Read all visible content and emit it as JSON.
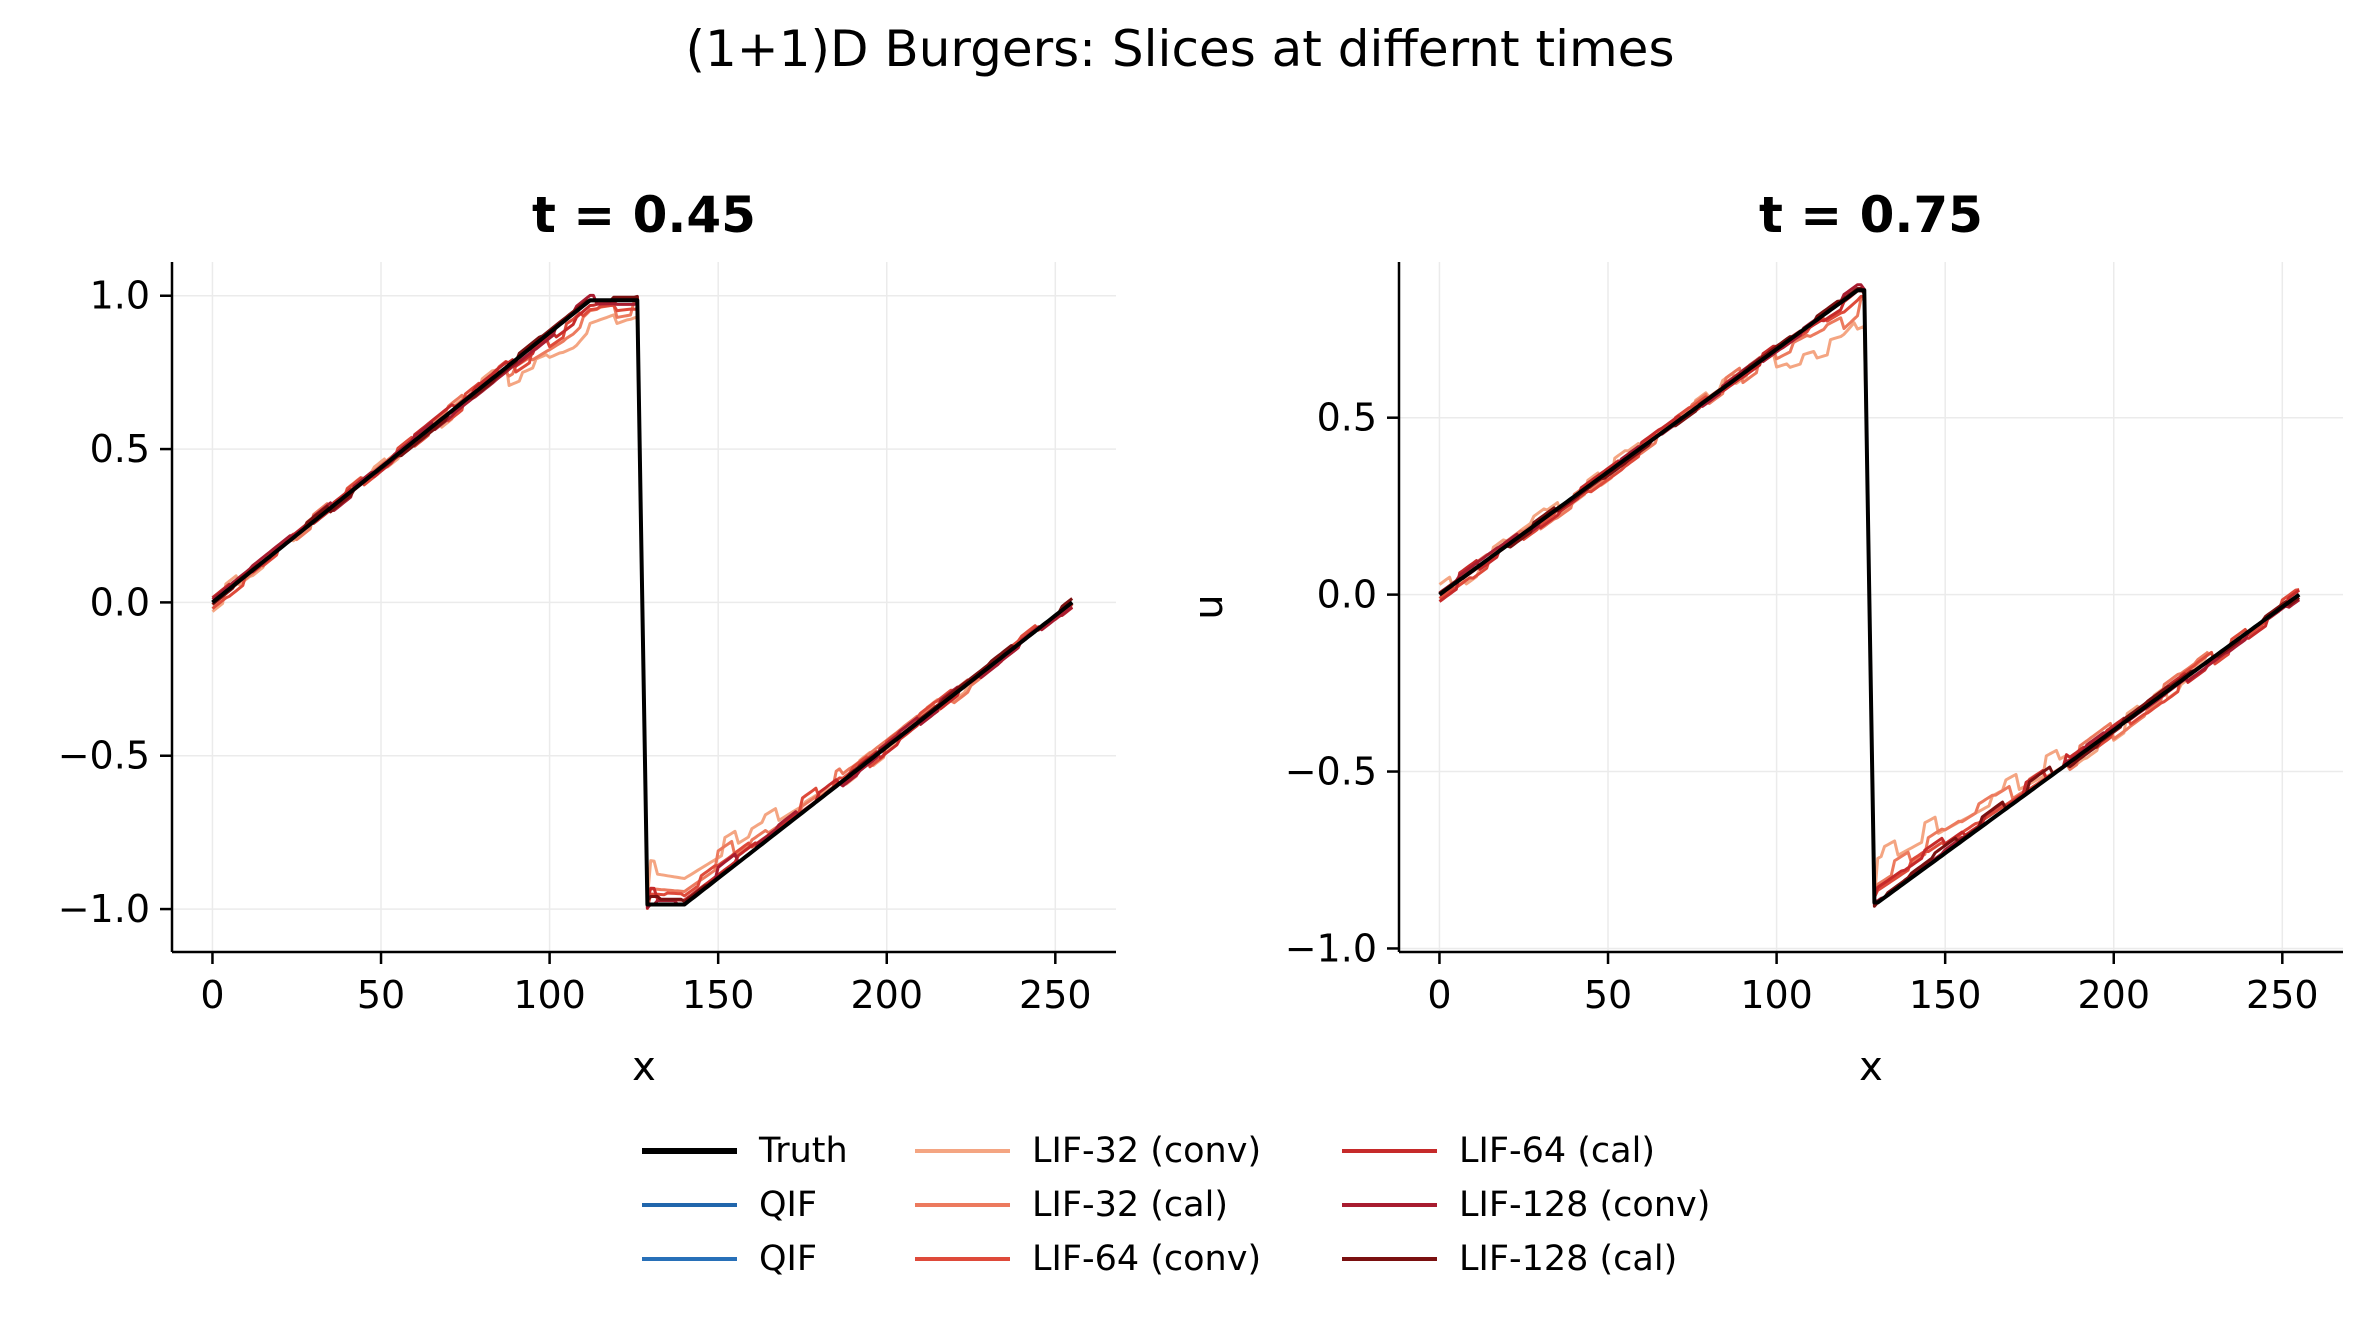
{
  "figure": {
    "suptitle": "(1+1)D Burgers: Slices at differnt times"
  },
  "colors": {
    "Truth": "#000000",
    "QIF": "#2166ac",
    "QIF2": "#2870b8",
    "LIF-32 (conv)": "#f4a582",
    "LIF-32 (cal)": "#ec7a5e",
    "LIF-64 (conv)": "#de4a3a",
    "LIF-64 (cal)": "#c62a2a",
    "LIF-128 (conv)": "#a81c30",
    "LIF-128 (cal)": "#7a1010",
    "grid": "#ebebeb"
  },
  "legend": [
    "Truth",
    "QIF",
    "QIF",
    "LIF-32 (conv)",
    "LIF-32 (cal)",
    "LIF-64 (conv)",
    "LIF-64 (cal)",
    "LIF-128 (conv)",
    "LIF-128 (cal)"
  ],
  "chart_data": [
    {
      "type": "line",
      "title": "t = 0.45",
      "xlabel": "x",
      "ylabel": "",
      "xlim": [
        -12,
        268
      ],
      "ylim": [
        -1.14,
        1.11
      ],
      "xticks": [
        0,
        50,
        100,
        150,
        200,
        250
      ],
      "yticks": [
        1.0,
        0.5,
        0.0,
        -0.5,
        -1.0
      ],
      "ytick_labels": [
        "1.0",
        "0.5",
        "0.0",
        "−0.5",
        "−1.0"
      ],
      "grid": true,
      "truth_shape": {
        "peak_x": 112,
        "peak_y": 0.985,
        "shock_x": 127,
        "trough_y": -0.985,
        "trough_x": 140,
        "end_x": 255
      }
    },
    {
      "type": "line",
      "title": "t = 0.75",
      "xlabel": "x",
      "ylabel": "u",
      "xlim": [
        -12,
        268
      ],
      "ylim": [
        -1.01,
        0.94
      ],
      "xticks": [
        0,
        50,
        100,
        150,
        200,
        250
      ],
      "yticks": [
        0.5,
        0.0,
        -0.5,
        -1.0
      ],
      "ytick_labels": [
        "0.5",
        "0.0",
        "−0.5",
        "−1.0"
      ],
      "grid": true,
      "truth_shape": {
        "peak_x": 124,
        "peak_y": 0.86,
        "shock_x": 127,
        "trough_y": -0.87,
        "trough_x": 130,
        "end_x": 255
      }
    }
  ]
}
